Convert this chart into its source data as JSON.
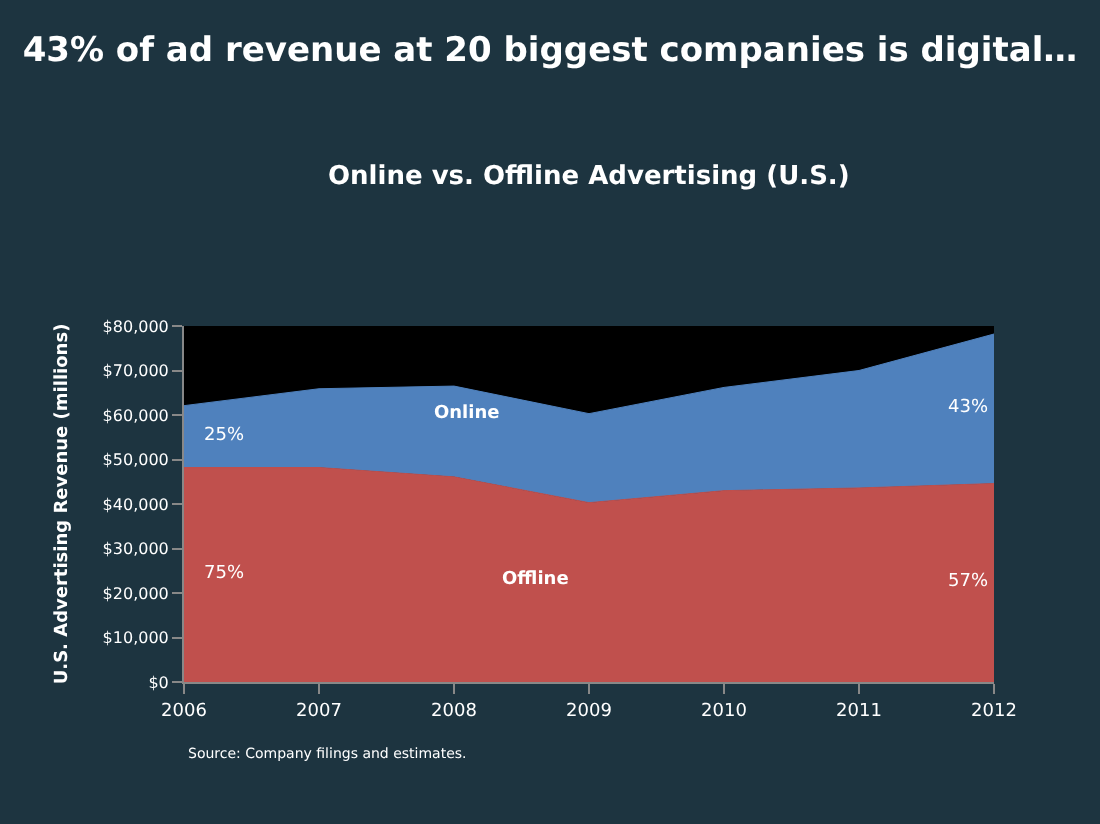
{
  "chart_data": {
    "type": "area",
    "stacked": true,
    "title": "43% of ad revenue at 20 biggest companies is digital…",
    "subtitle": "Online vs. Offline Advertising (U.S.)",
    "ylabel": "U.S. Advertising Revenue (millions)",
    "x": [
      2006,
      2007,
      2008,
      2009,
      2010,
      2011,
      2012
    ],
    "xlim": [
      2006,
      2012
    ],
    "xticks": [
      2006,
      2007,
      2008,
      2009,
      2010,
      2011,
      2012
    ],
    "ylim": [
      0,
      80000
    ],
    "yticks": [
      {
        "value": 0,
        "label": "$0"
      },
      {
        "value": 10000,
        "label": "$10,000"
      },
      {
        "value": 20000,
        "label": "$20,000"
      },
      {
        "value": 30000,
        "label": "$30,000"
      },
      {
        "value": 40000,
        "label": "$40,000"
      },
      {
        "value": 50000,
        "label": "$50,000"
      },
      {
        "value": 60000,
        "label": "$60,000"
      },
      {
        "value": 70000,
        "label": "$70,000"
      },
      {
        "value": 80000,
        "label": "$80,000"
      }
    ],
    "series": [
      {
        "name": "Offline",
        "color": "#c0504d",
        "values": [
          48200,
          48200,
          46100,
          40300,
          43000,
          43600,
          44600
        ]
      },
      {
        "name": "Online",
        "color": "#4f81bd",
        "values": [
          13900,
          17700,
          20400,
          20000,
          23200,
          26400,
          33600
        ]
      }
    ],
    "annotations": [
      "25%",
      "75%",
      "43%",
      "57%",
      "Source: Company filings and estimates."
    ],
    "grid": false,
    "legend": false
  }
}
